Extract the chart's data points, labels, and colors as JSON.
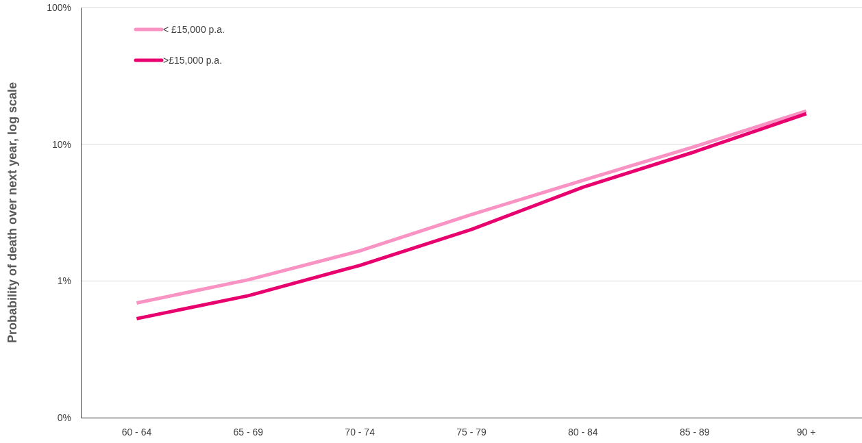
{
  "chart_data": {
    "type": "line",
    "ylabel": "Probability of death over next year, log scale",
    "categories": [
      "60 - 64",
      "65 - 69",
      "70 - 74",
      "75 - 79",
      "80 - 84",
      "85 - 89",
      "90 +"
    ],
    "series": [
      {
        "name": "< £15,000 p.a.",
        "color": "#f993c4",
        "values": [
          0.69,
          1.02,
          1.66,
          3.06,
          5.45,
          9.6,
          17.5
        ]
      },
      {
        "name": ">£15,000 p.a.",
        "color": "#e8006f",
        "values": [
          0.53,
          0.78,
          1.3,
          2.38,
          4.85,
          8.8,
          16.7
        ]
      }
    ],
    "log": true,
    "ylim": [
      0.1,
      100
    ],
    "yticks": [
      {
        "value": 0.1,
        "label": "0%"
      },
      {
        "value": 1,
        "label": "1%"
      },
      {
        "value": 10,
        "label": "10%"
      },
      {
        "value": 100,
        "label": "100%"
      }
    ],
    "grid": "y",
    "legend": "top left",
    "marker": "none",
    "line_style": "solid"
  }
}
